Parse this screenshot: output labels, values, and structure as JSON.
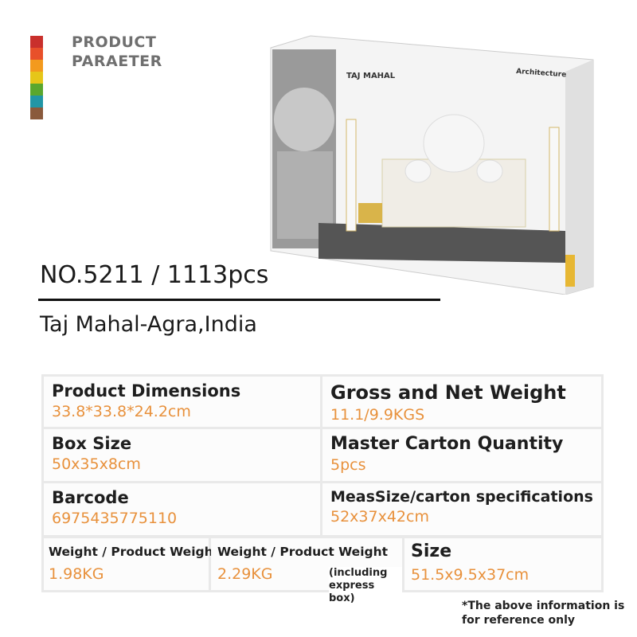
{
  "header": {
    "title_lines": [
      "PRODUCT",
      "PARAETER"
    ]
  },
  "image": {
    "box_title": "TAJ MAHAL",
    "box_brand": "Architecture"
  },
  "model": "NO.5211 / 1113pcs",
  "name": "Taj Mahal-Agra,India",
  "table": {
    "rows": [
      [
        {
          "label": "Product Dimensions",
          "value": "33.8*33.8*24.2cm"
        },
        {
          "label": "Gross and Net Weight",
          "value": "11.1/9.9KGS"
        }
      ],
      [
        {
          "label": "Box Size",
          "value": "50x35x8cm"
        },
        {
          "label": "Master Carton Quantity",
          "value": "5pcs"
        }
      ],
      [
        {
          "label": "Barcode",
          "value": "6975435775110"
        },
        {
          "label": "MeasSize/carton specifications",
          "value": "52x37x42cm"
        }
      ],
      [
        {
          "label": "Weight / Product Weight",
          "value": "1.98KG"
        },
        {
          "label": "Weight / Product Weight",
          "value": "2.29KG",
          "note": "(including express box)"
        },
        {
          "label": "Size",
          "value": "51.5x9.5x37cm"
        }
      ]
    ]
  },
  "footnote": "*The above information is for reference only"
}
